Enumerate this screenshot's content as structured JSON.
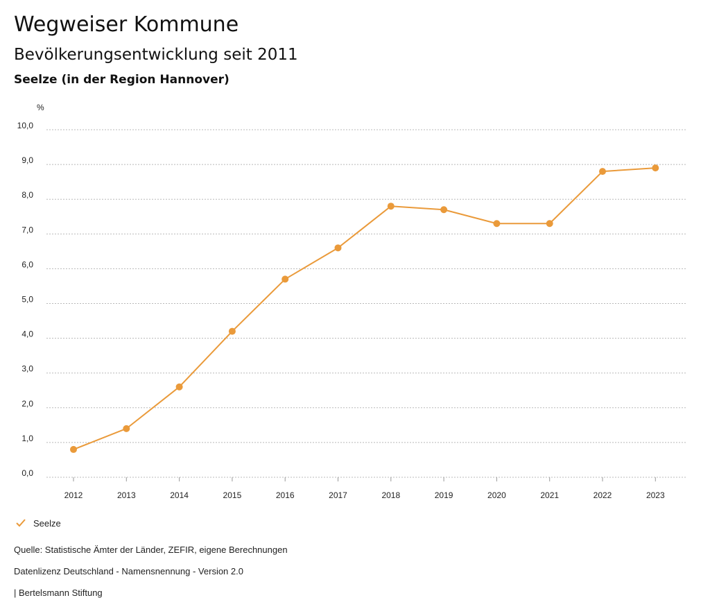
{
  "header": {
    "title": "Wegweiser Kommune",
    "subtitle": "Bevölkerungsentwicklung seit 2011",
    "region": "Seelze (in der Region Hannover)"
  },
  "chart_data": {
    "type": "line",
    "title": "Bevölkerungsentwicklung seit 2011",
    "ylabel": "%",
    "xlabel": "",
    "ylim": [
      0,
      10
    ],
    "y_ticks": [
      "0,0",
      "1,0",
      "2,0",
      "3,0",
      "4,0",
      "5,0",
      "6,0",
      "7,0",
      "8,0",
      "9,0",
      "10,0"
    ],
    "categories": [
      "2012",
      "2013",
      "2014",
      "2015",
      "2016",
      "2017",
      "2018",
      "2019",
      "2020",
      "2021",
      "2022",
      "2023"
    ],
    "series": [
      {
        "name": "Seelze",
        "color": "#ea9a3a",
        "values": [
          0.8,
          1.4,
          2.6,
          4.2,
          5.7,
          6.6,
          7.8,
          7.7,
          7.3,
          7.3,
          8.8,
          8.9
        ]
      }
    ],
    "grid": true,
    "grid_style": "dotted",
    "legend_position": "bottom-left"
  },
  "legend": {
    "label": "Seelze",
    "icon": "check-icon"
  },
  "footer": {
    "source": "Quelle: Statistische Ämter der Länder, ZEFIR, eigene Berechnungen",
    "license": "Datenlizenz Deutschland - Namensnennung - Version 2.0",
    "publisher": "| Bertelsmann Stiftung"
  }
}
